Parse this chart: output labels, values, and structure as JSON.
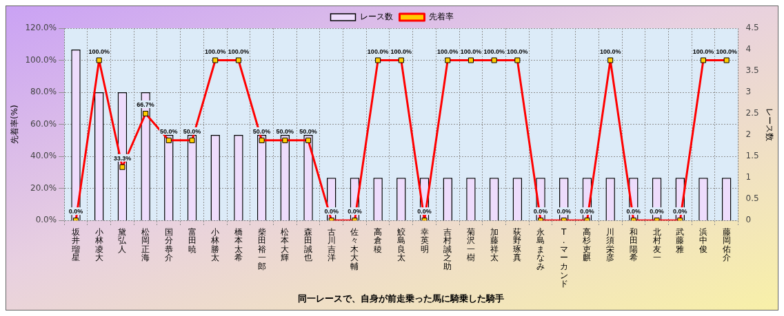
{
  "chart_data": {
    "type": "bar",
    "xlabel": "同一レースで、自身が前走乗った馬に騎乗した騎手",
    "ylabel": "先着率(%)",
    "y2label": "レース数",
    "categories": [
      "坂井瑠星",
      "小林凌大",
      "黛弘人",
      "松岡正海",
      "国分恭介",
      "富田暁",
      "小林勝太",
      "橋本太希",
      "柴田裕一郎",
      "松本大輝",
      "森田誠也",
      "古川吉洋",
      "佐々木大輔",
      "高倉稜",
      "鮫島良太",
      "幸英明",
      "吉村誠之助",
      "菊沢一樹",
      "加藤祥太",
      "荻野琢真",
      "永島まなみ",
      "T.マーカンド",
      "高杉吏麒",
      "川須栄彦",
      "和田陽希",
      "北村友一",
      "武藤雅",
      "浜中俊",
      "藤岡佑介"
    ],
    "series": [
      {
        "name": "レース数",
        "axis": "y2",
        "color": "#eedcfc",
        "values": [
          4,
          3,
          3,
          3,
          2,
          2,
          2,
          2,
          2,
          2,
          2,
          1,
          1,
          1,
          1,
          1,
          1,
          1,
          1,
          1,
          1,
          1,
          1,
          1,
          1,
          1,
          1,
          1,
          1
        ]
      },
      {
        "name": "先着率",
        "type": "line",
        "axis": "y",
        "color": "#ff0000",
        "values": [
          0,
          100,
          33.3,
          66.7,
          50,
          50,
          100,
          100,
          50,
          50,
          50,
          0,
          0,
          100,
          100,
          0,
          100,
          100,
          100,
          100,
          0,
          0,
          0,
          100,
          0,
          0,
          0,
          100,
          100
        ],
        "value_labels": [
          "0.0%",
          "100.0%",
          "33.3%",
          "66.7%",
          "50.0%",
          "50.0%",
          "100.0%",
          "100.0%",
          "50.0%",
          "50.0%",
          "50.0%",
          "0.0%",
          "0.0%",
          "100.0%",
          "100.0%",
          "0.0%",
          "100.0%",
          "100.0%",
          "100.0%",
          "100.0%",
          "0.0%",
          "0.0%",
          "0.0%",
          "100.0%",
          "0.0%",
          "0.0%",
          "0.0%",
          "100.0%",
          "100.0%"
        ]
      }
    ],
    "ylim": [
      0,
      120
    ],
    "yticks": [
      {
        "value": 0,
        "label": "0.0%"
      },
      {
        "value": 20,
        "label": "20.0%"
      },
      {
        "value": 40,
        "label": "40.0%"
      },
      {
        "value": 60,
        "label": "60.0%"
      },
      {
        "value": 80,
        "label": "80.0%"
      },
      {
        "value": 100,
        "label": "100.0%"
      },
      {
        "value": 120,
        "label": "120.0%"
      }
    ],
    "y2lim": [
      0,
      4.5
    ],
    "y2ticks": [
      0,
      0.5,
      1,
      1.5,
      2,
      2.5,
      3,
      3.5,
      4,
      4.5
    ],
    "grid": true,
    "legend": "top",
    "marker": "square"
  }
}
